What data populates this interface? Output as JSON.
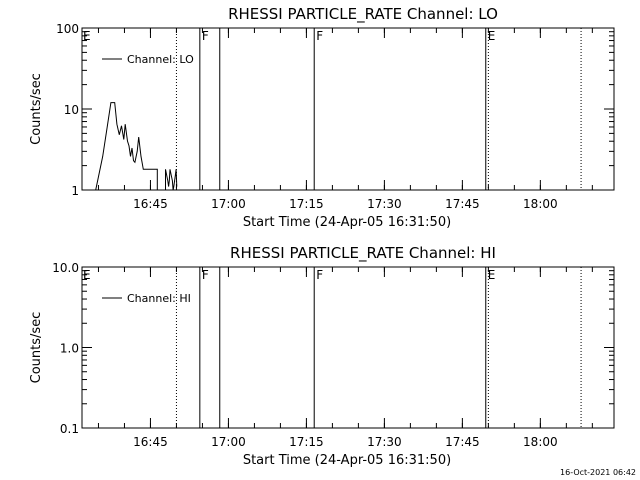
{
  "timestamp": "16-Oct-2021 06:42",
  "chart_data": [
    {
      "type": "line",
      "title": "RHESSI PARTICLE_RATE Channel: LO",
      "xlabel": "Start Time (24-Apr-05 16:31:50)",
      "ylabel": "Counts/sec",
      "yscale": "log",
      "ylim": [
        1,
        100
      ],
      "yticks": [
        {
          "value": 1,
          "label": "1"
        },
        {
          "value": 10,
          "label": "10"
        },
        {
          "value": 100,
          "label": "100"
        }
      ],
      "xlim": [
        "16:31:50",
        "18:14:10"
      ],
      "xticks": [
        {
          "value": "16:45",
          "label": "16:45"
        },
        {
          "value": "17:00",
          "label": "17:00"
        },
        {
          "value": "17:15",
          "label": "17:15"
        },
        {
          "value": "17:30",
          "label": "17:30"
        },
        {
          "value": "17:45",
          "label": "17:45"
        },
        {
          "value": "18:00",
          "label": "18:00"
        }
      ],
      "legend": {
        "label": "Channel: LO",
        "placement": "top-left"
      },
      "series": [
        {
          "name": "Channel: LO",
          "x": [
            "16:34:28",
            "16:35:49",
            "16:36:41",
            "16:37:24",
            "16:38:07",
            "16:38:33",
            "16:39:00",
            "16:39:26",
            "16:39:52",
            "16:40:09",
            "16:40:35",
            "16:40:53",
            "16:41:10",
            "16:41:27",
            "16:41:44",
            "16:42:01",
            "16:42:27",
            "16:42:44",
            "16:43:11",
            "16:43:37",
            "16:44:03",
            "16:44:29",
            "16:44:55",
            "16:46:19",
            "16:46:19",
            "16:47:54",
            "16:47:54",
            "16:48:20",
            "16:48:29",
            "16:48:38",
            "16:48:46",
            "16:49:13",
            "16:49:21",
            "16:49:30",
            "16:49:47",
            "16:49:56",
            "16:50:04"
          ],
          "y": [
            1,
            2.6,
            6,
            12,
            12,
            6.5,
            4.8,
            6.2,
            4.2,
            6.5,
            4,
            3.5,
            2.6,
            3.3,
            2.3,
            2.2,
            3,
            4.5,
            2.6,
            1.8,
            1.8,
            1.8,
            1.8,
            1.8,
            1,
            1,
            1.8,
            1.3,
            1.1,
            1.3,
            1.8,
            1.3,
            1,
            1.1,
            1.5,
            1.8,
            1.1
          ]
        }
      ],
      "markers": [
        {
          "time": "16:50:00",
          "style": "dotted",
          "label": ""
        },
        {
          "time": "16:54:30",
          "style": "solid",
          "label": "F"
        },
        {
          "time": "16:58:20",
          "style": "solid",
          "label": ""
        },
        {
          "time": "17:16:30",
          "style": "solid",
          "label": "F"
        },
        {
          "time": "17:49:30",
          "style": "solid",
          "label": "E"
        },
        {
          "time": "17:50:00",
          "style": "dotted",
          "label": ""
        },
        {
          "time": "18:07:50",
          "style": "dotted",
          "label": ""
        }
      ],
      "corner_label": "E",
      "grid": false
    },
    {
      "type": "line",
      "title": "RHESSI PARTICLE_RATE Channel: HI",
      "xlabel": "Start Time (24-Apr-05 16:31:50)",
      "ylabel": "Counts/sec",
      "yscale": "log",
      "ylim": [
        0.1,
        10
      ],
      "yticks": [
        {
          "value": 0.1,
          "label": "0.1"
        },
        {
          "value": 1,
          "label": "1.0"
        },
        {
          "value": 10,
          "label": "10.0"
        }
      ],
      "xlim": [
        "16:31:50",
        "18:14:10"
      ],
      "xticks": [
        {
          "value": "16:45",
          "label": "16:45"
        },
        {
          "value": "17:00",
          "label": "17:00"
        },
        {
          "value": "17:15",
          "label": "17:15"
        },
        {
          "value": "17:30",
          "label": "17:30"
        },
        {
          "value": "17:45",
          "label": "17:45"
        },
        {
          "value": "18:00",
          "label": "18:00"
        }
      ],
      "legend": {
        "label": "Channel: HI",
        "placement": "top-left"
      },
      "series": [
        {
          "name": "Channel: HI",
          "x": [],
          "y": []
        }
      ],
      "markers": [
        {
          "time": "16:50:00",
          "style": "dotted",
          "label": ""
        },
        {
          "time": "16:54:30",
          "style": "solid",
          "label": "F"
        },
        {
          "time": "16:58:20",
          "style": "solid",
          "label": ""
        },
        {
          "time": "17:16:30",
          "style": "solid",
          "label": "F"
        },
        {
          "time": "17:49:30",
          "style": "solid",
          "label": "E"
        },
        {
          "time": "17:50:00",
          "style": "dotted",
          "label": ""
        },
        {
          "time": "18:07:50",
          "style": "dotted",
          "label": ""
        }
      ],
      "corner_label": "E",
      "grid": false
    }
  ]
}
